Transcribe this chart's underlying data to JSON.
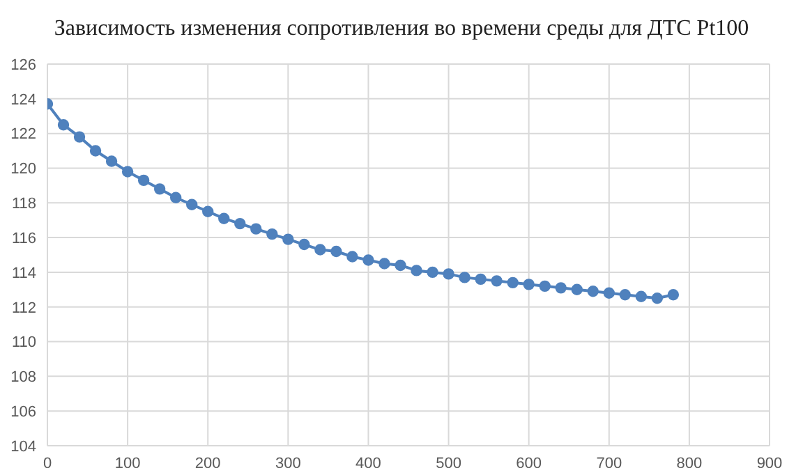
{
  "chart_data": {
    "type": "line",
    "title": "Зависимость изменения сопротивления во времени среды для ДТС Pt100",
    "x": [
      0,
      20,
      40,
      60,
      80,
      100,
      120,
      140,
      160,
      180,
      200,
      220,
      240,
      260,
      280,
      300,
      320,
      340,
      360,
      380,
      400,
      420,
      440,
      460,
      480,
      500,
      520,
      540,
      560,
      580,
      600,
      620,
      640,
      660,
      680,
      700,
      720,
      740,
      760,
      780
    ],
    "series": [
      {
        "color": "#4f81bd",
        "values": [
          123.7,
          122.5,
          121.8,
          121.0,
          120.4,
          119.8,
          119.3,
          118.8,
          118.3,
          117.9,
          117.5,
          117.1,
          116.8,
          116.5,
          116.2,
          115.9,
          115.6,
          115.3,
          115.2,
          114.9,
          114.7,
          114.5,
          114.4,
          114.1,
          114.0,
          113.9,
          113.7,
          113.6,
          113.5,
          113.4,
          113.3,
          113.2,
          113.1,
          113.0,
          112.9,
          112.8,
          112.7,
          112.6,
          112.5,
          112.7
        ]
      }
    ],
    "xlim": [
      0,
      900
    ],
    "xticks": [
      0,
      100,
      200,
      300,
      400,
      500,
      600,
      700,
      800,
      900
    ],
    "ylim": [
      104,
      126
    ],
    "yticks": [
      104,
      106,
      108,
      110,
      112,
      114,
      116,
      118,
      120,
      122,
      124,
      126
    ],
    "grid": true,
    "marker": "circle",
    "line_style": "solid",
    "legend": false
  }
}
